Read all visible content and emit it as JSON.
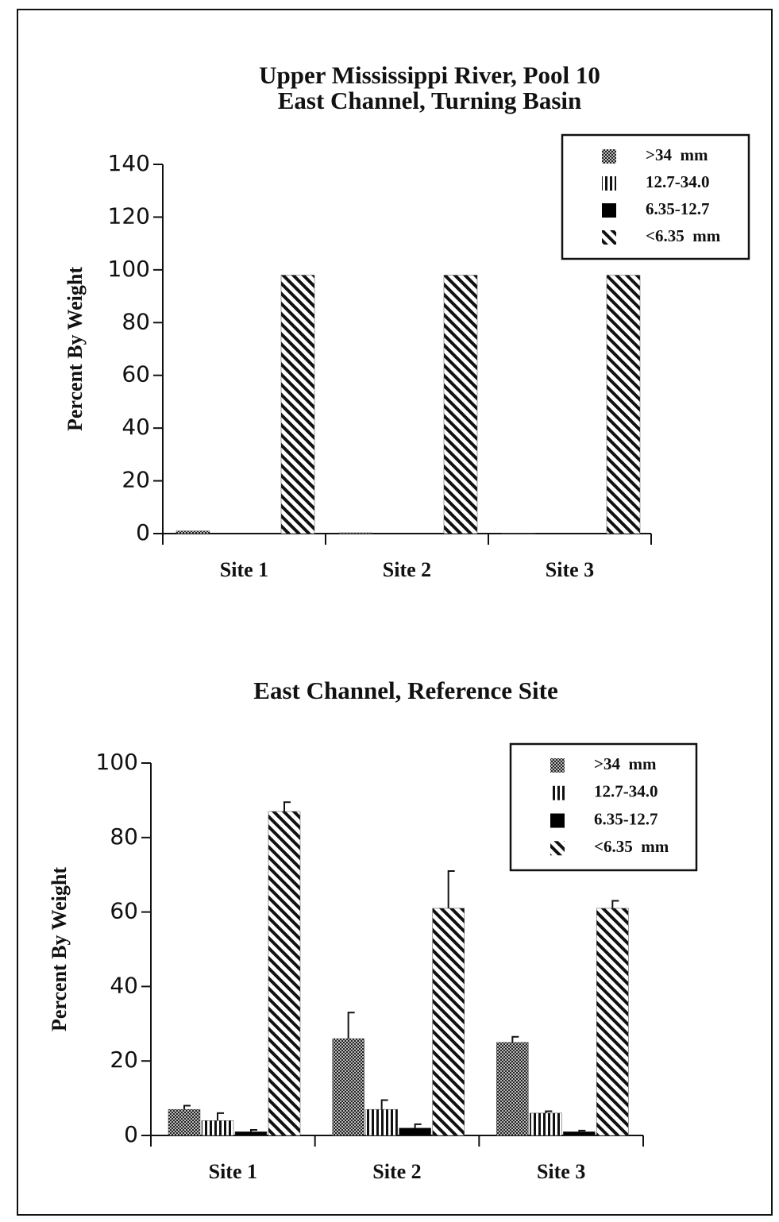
{
  "chart_data": [
    {
      "type": "bar",
      "title": "Upper Mississippi River, Pool 10",
      "subtitle": "East Channel, Turning Basin",
      "y_label": "Percent By Weight",
      "categories": [
        "Site 1",
        "Site 2",
        "Site 3"
      ],
      "series": [
        {
          "name": ">34  mm",
          "color": "#000000",
          "pattern": "checker",
          "values": [
            1,
            0.3,
            0.1
          ]
        },
        {
          "name": "12.7-34.0",
          "color": "#000000",
          "pattern": "vertical",
          "values": [
            0,
            0,
            0
          ]
        },
        {
          "name": "6.35-12.7",
          "color": "#000000",
          "pattern": "solid",
          "values": [
            0,
            0,
            0
          ]
        },
        {
          "name": "<6.35  mm",
          "color": "#000000",
          "pattern": "diagonal",
          "values": [
            98,
            98,
            98
          ]
        }
      ],
      "ylim": [
        0,
        140
      ],
      "yticks": [
        0,
        20,
        40,
        60,
        80,
        100,
        120,
        140
      ],
      "legend": "upper right"
    },
    {
      "type": "bar",
      "title": "East Channel, Reference Site",
      "y_label": "Percent By Weight",
      "categories": [
        "Site 1",
        "Site 2",
        "Site 3"
      ],
      "series": [
        {
          "name": ">34  mm",
          "color": "#000000",
          "pattern": "checker",
          "values": [
            7,
            26,
            25
          ],
          "errors": [
            1,
            7,
            1.5
          ]
        },
        {
          "name": "12.7-34.0",
          "color": "#000000",
          "pattern": "vertical",
          "values": [
            4,
            7,
            6
          ],
          "errors": [
            2,
            2.5,
            0.5
          ]
        },
        {
          "name": "6.35-12.7",
          "color": "#000000",
          "pattern": "solid",
          "values": [
            1,
            2,
            1
          ],
          "errors": [
            0.5,
            1,
            0.3
          ]
        },
        {
          "name": "<6.35  mm",
          "color": "#000000",
          "pattern": "diagonal",
          "values": [
            87,
            61,
            61
          ],
          "errors": [
            2.5,
            10,
            2
          ]
        }
      ],
      "ylim": [
        0,
        100
      ],
      "yticks": [
        0,
        20,
        40,
        60,
        80,
        100
      ],
      "legend": "upper right"
    }
  ]
}
